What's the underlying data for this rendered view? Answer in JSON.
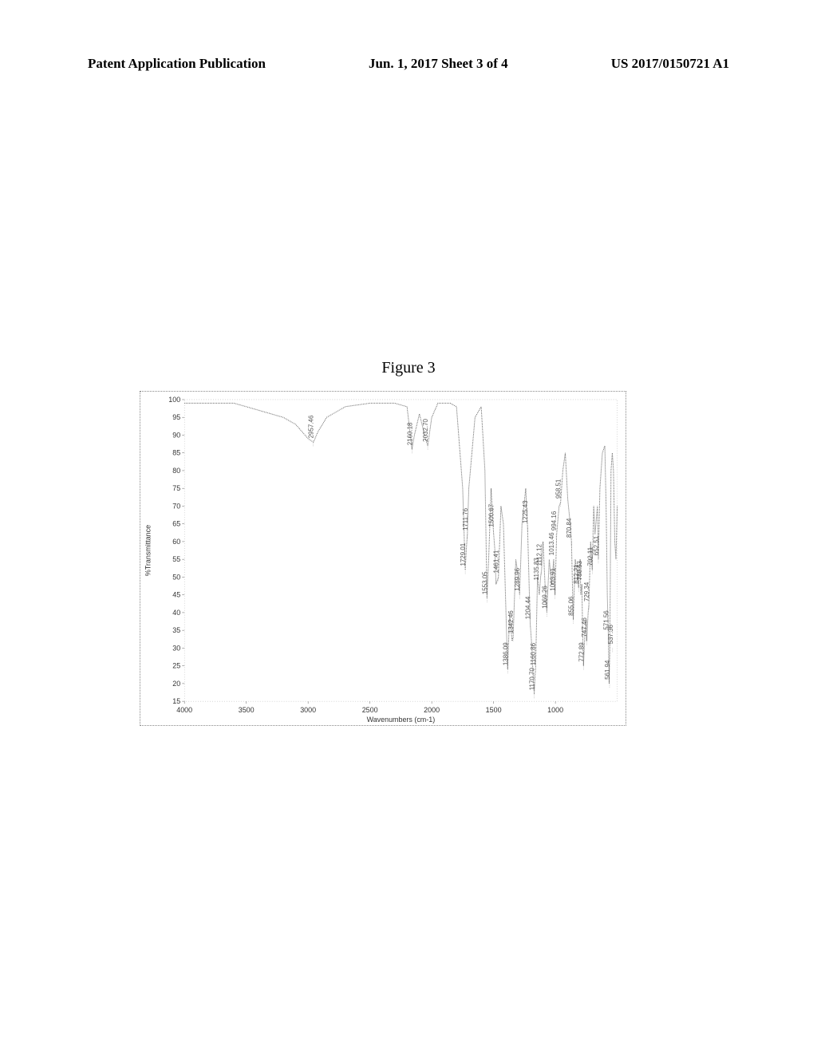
{
  "header": {
    "left": "Patent Application Publication",
    "center": "Jun. 1, 2017  Sheet 3 of 4",
    "right": "US 2017/0150721 A1"
  },
  "figure": {
    "title": "Figure 3"
  },
  "chart": {
    "type": "line",
    "xlabel": "Wavenumbers (cm-1)",
    "ylabel": "%Transmittance",
    "xlim": [
      4000,
      500
    ],
    "ylim": [
      15,
      100
    ],
    "xticks": [
      4000,
      3500,
      3000,
      2500,
      2000,
      1500,
      1000
    ],
    "yticks": [
      15,
      20,
      25,
      30,
      35,
      40,
      45,
      50,
      55,
      60,
      65,
      70,
      75,
      80,
      85,
      90,
      95,
      100
    ],
    "line_color": "#666666",
    "grid_color": "#cccccc",
    "background_color": "#ffffff",
    "label_fontsize": 9,
    "tick_fontsize": 9,
    "peak_fontsize": 8,
    "line_width": 1,
    "spectrum": [
      [
        4000,
        99
      ],
      [
        3800,
        99
      ],
      [
        3600,
        99
      ],
      [
        3500,
        98
      ],
      [
        3400,
        97
      ],
      [
        3300,
        96
      ],
      [
        3200,
        95
      ],
      [
        3100,
        93
      ],
      [
        3050,
        91
      ],
      [
        3000,
        89
      ],
      [
        2957,
        88
      ],
      [
        2920,
        91
      ],
      [
        2850,
        95
      ],
      [
        2700,
        98
      ],
      [
        2500,
        99
      ],
      [
        2300,
        99
      ],
      [
        2200,
        98
      ],
      [
        2160,
        86
      ],
      [
        2140,
        90
      ],
      [
        2100,
        96
      ],
      [
        2050,
        89
      ],
      [
        2032,
        87
      ],
      [
        2000,
        95
      ],
      [
        1950,
        99
      ],
      [
        1850,
        99
      ],
      [
        1800,
        98
      ],
      [
        1750,
        75
      ],
      [
        1729,
        52
      ],
      [
        1720,
        58
      ],
      [
        1712,
        62
      ],
      [
        1700,
        75
      ],
      [
        1650,
        95
      ],
      [
        1600,
        98
      ],
      [
        1570,
        80
      ],
      [
        1553,
        44
      ],
      [
        1540,
        55
      ],
      [
        1520,
        75
      ],
      [
        1501,
        63
      ],
      [
        1490,
        58
      ],
      [
        1480,
        48
      ],
      [
        1461,
        50
      ],
      [
        1440,
        70
      ],
      [
        1420,
        65
      ],
      [
        1400,
        40
      ],
      [
        1386,
        24
      ],
      [
        1370,
        40
      ],
      [
        1350,
        32
      ],
      [
        1342,
        33
      ],
      [
        1320,
        55
      ],
      [
        1300,
        50
      ],
      [
        1289,
        45
      ],
      [
        1270,
        65
      ],
      [
        1240,
        75
      ],
      [
        1225,
        64
      ],
      [
        1210,
        45
      ],
      [
        1204,
        37
      ],
      [
        1190,
        30
      ],
      [
        1180,
        22
      ],
      [
        1171,
        17
      ],
      [
        1165,
        22
      ],
      [
        1160,
        24
      ],
      [
        1145,
        50
      ],
      [
        1130,
        45
      ],
      [
        1120,
        50
      ],
      [
        1112,
        52
      ],
      [
        1100,
        60
      ],
      [
        1080,
        45
      ],
      [
        1069,
        40
      ],
      [
        1050,
        55
      ],
      [
        1030,
        48
      ],
      [
        1014,
        55
      ],
      [
        1003,
        45
      ],
      [
        990,
        62
      ],
      [
        970,
        70
      ],
      [
        958,
        71
      ],
      [
        940,
        80
      ],
      [
        920,
        85
      ],
      [
        900,
        72
      ],
      [
        880,
        65
      ],
      [
        870,
        60
      ],
      [
        860,
        45
      ],
      [
        855,
        38
      ],
      [
        840,
        55
      ],
      [
        820,
        50
      ],
      [
        812,
        47
      ],
      [
        800,
        55
      ],
      [
        795,
        45
      ],
      [
        786,
        48
      ],
      [
        780,
        35
      ],
      [
        773,
        25
      ],
      [
        760,
        35
      ],
      [
        750,
        38
      ],
      [
        747,
        32
      ],
      [
        735,
        40
      ],
      [
        729,
        42
      ],
      [
        715,
        60
      ],
      [
        702,
        52
      ],
      [
        690,
        70
      ],
      [
        680,
        62
      ],
      [
        660,
        70
      ],
      [
        652,
        55
      ],
      [
        640,
        75
      ],
      [
        620,
        85
      ],
      [
        600,
        87
      ],
      [
        590,
        70
      ],
      [
        580,
        45
      ],
      [
        572,
        34
      ],
      [
        565,
        20
      ],
      [
        560,
        30
      ],
      [
        550,
        80
      ],
      [
        540,
        85
      ],
      [
        530,
        80
      ],
      [
        520,
        60
      ],
      [
        510,
        55
      ],
      [
        500,
        70
      ]
    ],
    "peaks": [
      {
        "wn": 2957.46,
        "t": 88
      },
      {
        "wn": 2160.18,
        "t": 86
      },
      {
        "wn": 2032.7,
        "t": 87
      },
      {
        "wn": 1729.01,
        "t": 52
      },
      {
        "wn": 1711.76,
        "t": 62
      },
      {
        "wn": 1553.05,
        "t": 44
      },
      {
        "wn": 1500.67,
        "t": 63
      },
      {
        "wn": 1461.41,
        "t": 50
      },
      {
        "wn": 1386.09,
        "t": 24
      },
      {
        "wn": 1342.46,
        "t": 33
      },
      {
        "wn": 1289.96,
        "t": 45
      },
      {
        "wn": 1225.43,
        "t": 64
      },
      {
        "wn": 1204.44,
        "t": 37
      },
      {
        "wn": 1170.7,
        "t": 17
      },
      {
        "wn": 1160.86,
        "t": 24
      },
      {
        "wn": 1135.83,
        "t": 48
      },
      {
        "wn": 1112.12,
        "t": 52
      },
      {
        "wn": 1069.26,
        "t": 40
      },
      {
        "wn": 1013.46,
        "t": 55
      },
      {
        "wn": 1003.91,
        "t": 45
      },
      {
        "wn": 994.16,
        "t": 62
      },
      {
        "wn": 958.51,
        "t": 71
      },
      {
        "wn": 870.84,
        "t": 60
      },
      {
        "wn": 855.06,
        "t": 38
      },
      {
        "wn": 812.21,
        "t": 47
      },
      {
        "wn": 786.53,
        "t": 48
      },
      {
        "wn": 772.89,
        "t": 25
      },
      {
        "wn": 747.46,
        "t": 32
      },
      {
        "wn": 729.34,
        "t": 42
      },
      {
        "wn": 702.11,
        "t": 52
      },
      {
        "wn": 652.51,
        "t": 55
      },
      {
        "wn": 571.56,
        "t": 34
      },
      {
        "wn": 561.94,
        "t": 20
      },
      {
        "wn": 537.36,
        "t": 30
      }
    ]
  }
}
